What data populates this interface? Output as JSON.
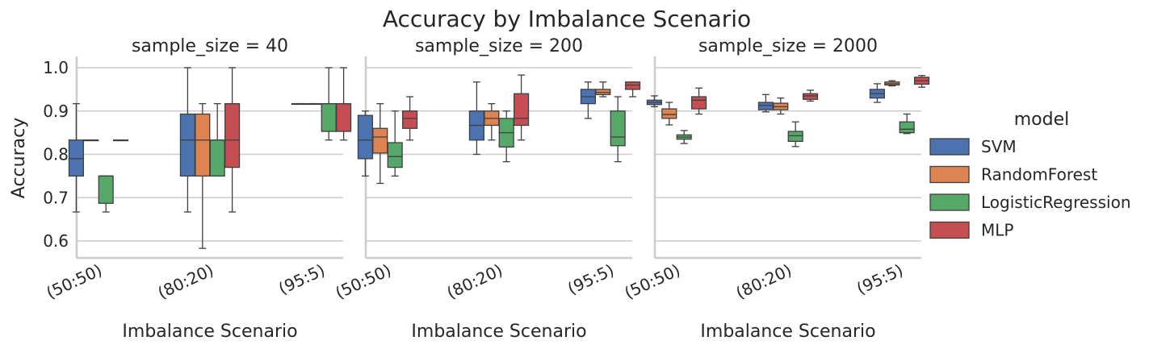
{
  "chart_data": {
    "type": "box",
    "title": "Accuracy by Imbalance Scenario",
    "ylabel": "Accuracy",
    "xlabel": "Imbalance Scenario",
    "ylim": [
      0.56,
      1.02
    ],
    "yticks": [
      "0.6",
      "0.7",
      "0.8",
      "0.9",
      "1.0"
    ],
    "grid": "horizontal",
    "categories": [
      "(50:50)",
      "(80:20)",
      "(95:5)"
    ],
    "legend": {
      "title": "model",
      "position": "right",
      "items": [
        {
          "name": "SVM",
          "color": "#4c72b0"
        },
        {
          "name": "RandomForest",
          "color": "#dd8452"
        },
        {
          "name": "LogisticRegression",
          "color": "#55a868"
        },
        {
          "name": "MLP",
          "color": "#c44e52"
        }
      ]
    },
    "panels": [
      {
        "title": "sample_size = 40",
        "boxes": [
          [
            [
              0.667,
              0.75,
              0.79,
              0.833,
              0.917
            ],
            [
              0.833,
              0.833,
              0.833,
              0.833,
              0.833
            ],
            [
              0.667,
              0.687,
              0.75,
              0.75,
              0.75
            ],
            [
              0.833,
              0.833,
              0.833,
              0.833,
              0.833
            ]
          ],
          [
            [
              0.667,
              0.75,
              0.833,
              0.893,
              1.0
            ],
            [
              0.583,
              0.75,
              0.833,
              0.893,
              0.917
            ],
            [
              0.75,
              0.75,
              0.833,
              0.833,
              0.917
            ],
            [
              0.667,
              0.77,
              0.833,
              0.917,
              1.0
            ]
          ],
          [
            [
              0.917,
              0.917,
              0.917,
              0.917,
              0.917
            ],
            [
              0.917,
              0.917,
              0.917,
              0.917,
              0.917
            ],
            [
              0.833,
              0.853,
              0.917,
              0.917,
              1.0
            ],
            [
              0.833,
              0.853,
              0.917,
              0.917,
              1.0
            ]
          ]
        ]
      },
      {
        "title": "sample_size = 200",
        "boxes": [
          [
            [
              0.75,
              0.79,
              0.833,
              0.89,
              0.9
            ],
            [
              0.733,
              0.803,
              0.84,
              0.86,
              0.917
            ],
            [
              0.75,
              0.77,
              0.795,
              0.827,
              0.9
            ],
            [
              0.833,
              0.86,
              0.883,
              0.9,
              0.933
            ]
          ],
          [
            [
              0.8,
              0.833,
              0.867,
              0.9,
              0.967
            ],
            [
              0.833,
              0.867,
              0.883,
              0.9,
              0.917
            ],
            [
              0.783,
              0.817,
              0.85,
              0.883,
              0.9
            ],
            [
              0.833,
              0.867,
              0.883,
              0.94,
              0.983
            ]
          ],
          [
            [
              0.883,
              0.917,
              0.933,
              0.95,
              0.967
            ],
            [
              0.933,
              0.938,
              0.943,
              0.95,
              0.967
            ],
            [
              0.783,
              0.82,
              0.84,
              0.9,
              0.933
            ],
            [
              0.933,
              0.95,
              0.96,
              0.967,
              0.967
            ]
          ]
        ]
      },
      {
        "title": "sample_size = 2000",
        "boxes": [
          [
            [
              0.91,
              0.915,
              0.92,
              0.925,
              0.935
            ],
            [
              0.868,
              0.883,
              0.892,
              0.905,
              0.92
            ],
            [
              0.825,
              0.835,
              0.84,
              0.845,
              0.855
            ],
            [
              0.893,
              0.905,
              0.925,
              0.933,
              0.953
            ]
          ],
          [
            [
              0.898,
              0.903,
              0.913,
              0.92,
              0.938
            ],
            [
              0.893,
              0.903,
              0.91,
              0.918,
              0.93
            ],
            [
              0.818,
              0.83,
              0.843,
              0.853,
              0.875
            ],
            [
              0.923,
              0.927,
              0.935,
              0.94,
              0.948
            ]
          ],
          [
            [
              0.92,
              0.93,
              0.94,
              0.95,
              0.963
            ],
            [
              0.958,
              0.96,
              0.963,
              0.967,
              0.97
            ],
            [
              0.848,
              0.85,
              0.858,
              0.875,
              0.893
            ],
            [
              0.955,
              0.962,
              0.97,
              0.978,
              0.982
            ]
          ]
        ]
      }
    ]
  }
}
